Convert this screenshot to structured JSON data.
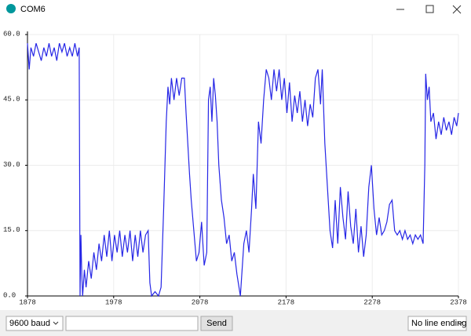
{
  "window": {
    "title": "COM6",
    "baud": "9600 baud",
    "send": "Send",
    "line_ending": "No line ending"
  },
  "chart_data": {
    "type": "line",
    "color": "#2626e6",
    "xlim": [
      1878,
      2378
    ],
    "xticks": [
      1878,
      1978,
      2078,
      2178,
      2278,
      2378
    ],
    "ylim": [
      0,
      60
    ],
    "yticks": [
      {
        "value": 0,
        "label": "0.0"
      },
      {
        "value": 15,
        "label": "15.0"
      },
      {
        "value": 30,
        "label": "30.0"
      },
      {
        "value": 45,
        "label": "45.0"
      },
      {
        "value": 60,
        "label": "60.0"
      }
    ],
    "grid": true,
    "x": [
      1878,
      1880,
      1882,
      1885,
      1888,
      1891,
      1894,
      1897,
      1900,
      1903,
      1906,
      1909,
      1912,
      1915,
      1918,
      1921,
      1924,
      1927,
      1930,
      1933,
      1936,
      1938,
      1939,
      1940,
      1941,
      1942,
      1944,
      1946,
      1949,
      1952,
      1955,
      1958,
      1961,
      1964,
      1967,
      1970,
      1973,
      1976,
      1979,
      1982,
      1985,
      1988,
      1991,
      1994,
      1997,
      2000,
      2003,
      2006,
      2009,
      2012,
      2015,
      2018,
      2020,
      2022,
      2026,
      2030,
      2033,
      2036,
      2039,
      2041,
      2043,
      2045,
      2048,
      2051,
      2054,
      2057,
      2060,
      2062,
      2064,
      2066,
      2068,
      2071,
      2074,
      2077,
      2080,
      2083,
      2086,
      2088,
      2090,
      2092,
      2094,
      2096,
      2098,
      2100,
      2103,
      2106,
      2109,
      2112,
      2115,
      2118,
      2121,
      2125,
      2129,
      2132,
      2135,
      2138,
      2140,
      2143,
      2146,
      2149,
      2152,
      2155,
      2158,
      2161,
      2164,
      2167,
      2170,
      2173,
      2176,
      2179,
      2182,
      2185,
      2188,
      2191,
      2194,
      2197,
      2200,
      2203,
      2206,
      2209,
      2212,
      2215,
      2218,
      2220,
      2223,
      2226,
      2229,
      2232,
      2235,
      2238,
      2241,
      2244,
      2247,
      2250,
      2253,
      2256,
      2259,
      2262,
      2265,
      2268,
      2271,
      2274,
      2277,
      2280,
      2283,
      2286,
      2289,
      2292,
      2295,
      2298,
      2301,
      2304,
      2307,
      2310,
      2313,
      2316,
      2319,
      2322,
      2325,
      2328,
      2331,
      2334,
      2337,
      2339,
      2340,
      2342,
      2344,
      2346,
      2349,
      2352,
      2355,
      2358,
      2361,
      2364,
      2367,
      2370,
      2373,
      2376,
      2378
    ],
    "values": [
      58,
      52,
      57,
      55,
      58,
      56,
      54,
      57,
      55,
      58,
      55,
      57,
      54,
      58,
      56,
      58,
      55,
      57,
      55,
      58,
      55,
      57,
      0,
      14,
      5,
      0,
      6,
      2,
      8,
      4,
      10,
      6,
      12,
      8,
      14,
      9,
      15,
      8,
      14,
      10,
      15,
      9,
      14,
      10,
      15,
      8,
      14,
      9,
      15,
      10,
      14,
      15,
      3,
      0,
      1,
      0,
      2,
      20,
      40,
      48,
      44,
      50,
      45,
      50,
      46,
      50,
      50,
      42,
      35,
      28,
      22,
      15,
      8,
      10,
      17,
      7,
      10,
      45,
      48,
      40,
      50,
      46,
      40,
      30,
      22,
      18,
      12,
      14,
      8,
      10,
      5,
      0,
      12,
      15,
      10,
      20,
      28,
      20,
      40,
      35,
      45,
      52,
      50,
      45,
      52,
      47,
      52,
      45,
      50,
      42,
      49,
      40,
      46,
      42,
      47,
      40,
      45,
      39,
      44,
      41,
      50,
      52,
      44,
      52,
      35,
      25,
      15,
      11,
      22,
      12,
      25,
      18,
      13,
      24,
      16,
      12,
      20,
      10,
      16,
      9,
      14,
      25,
      30,
      20,
      14,
      18,
      14,
      15,
      17,
      21,
      22,
      15,
      14,
      15,
      13,
      15,
      13,
      14,
      12,
      14,
      13,
      14,
      12,
      30,
      51,
      45,
      48,
      40,
      42,
      36,
      40,
      37,
      41,
      38,
      40,
      37,
      41,
      39,
      42
    ]
  }
}
